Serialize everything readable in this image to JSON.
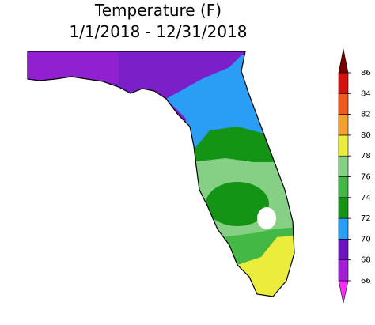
{
  "title": [
    "Temperature (F)",
    "1/1/2018 - 12/31/2018"
  ],
  "colorbar": {
    "ticks": [
      66,
      68,
      70,
      72,
      74,
      76,
      78,
      80,
      82,
      84,
      86
    ],
    "colors": [
      "#a21fd6",
      "#6a14c2",
      "#2a9df4",
      "#149414",
      "#44b844",
      "#86d086",
      "#ecec3c",
      "#f4a030",
      "#f05a1e",
      "#d81010"
    ],
    "under_color": "#ff2cff",
    "over_color": "#7a0000"
  }
}
